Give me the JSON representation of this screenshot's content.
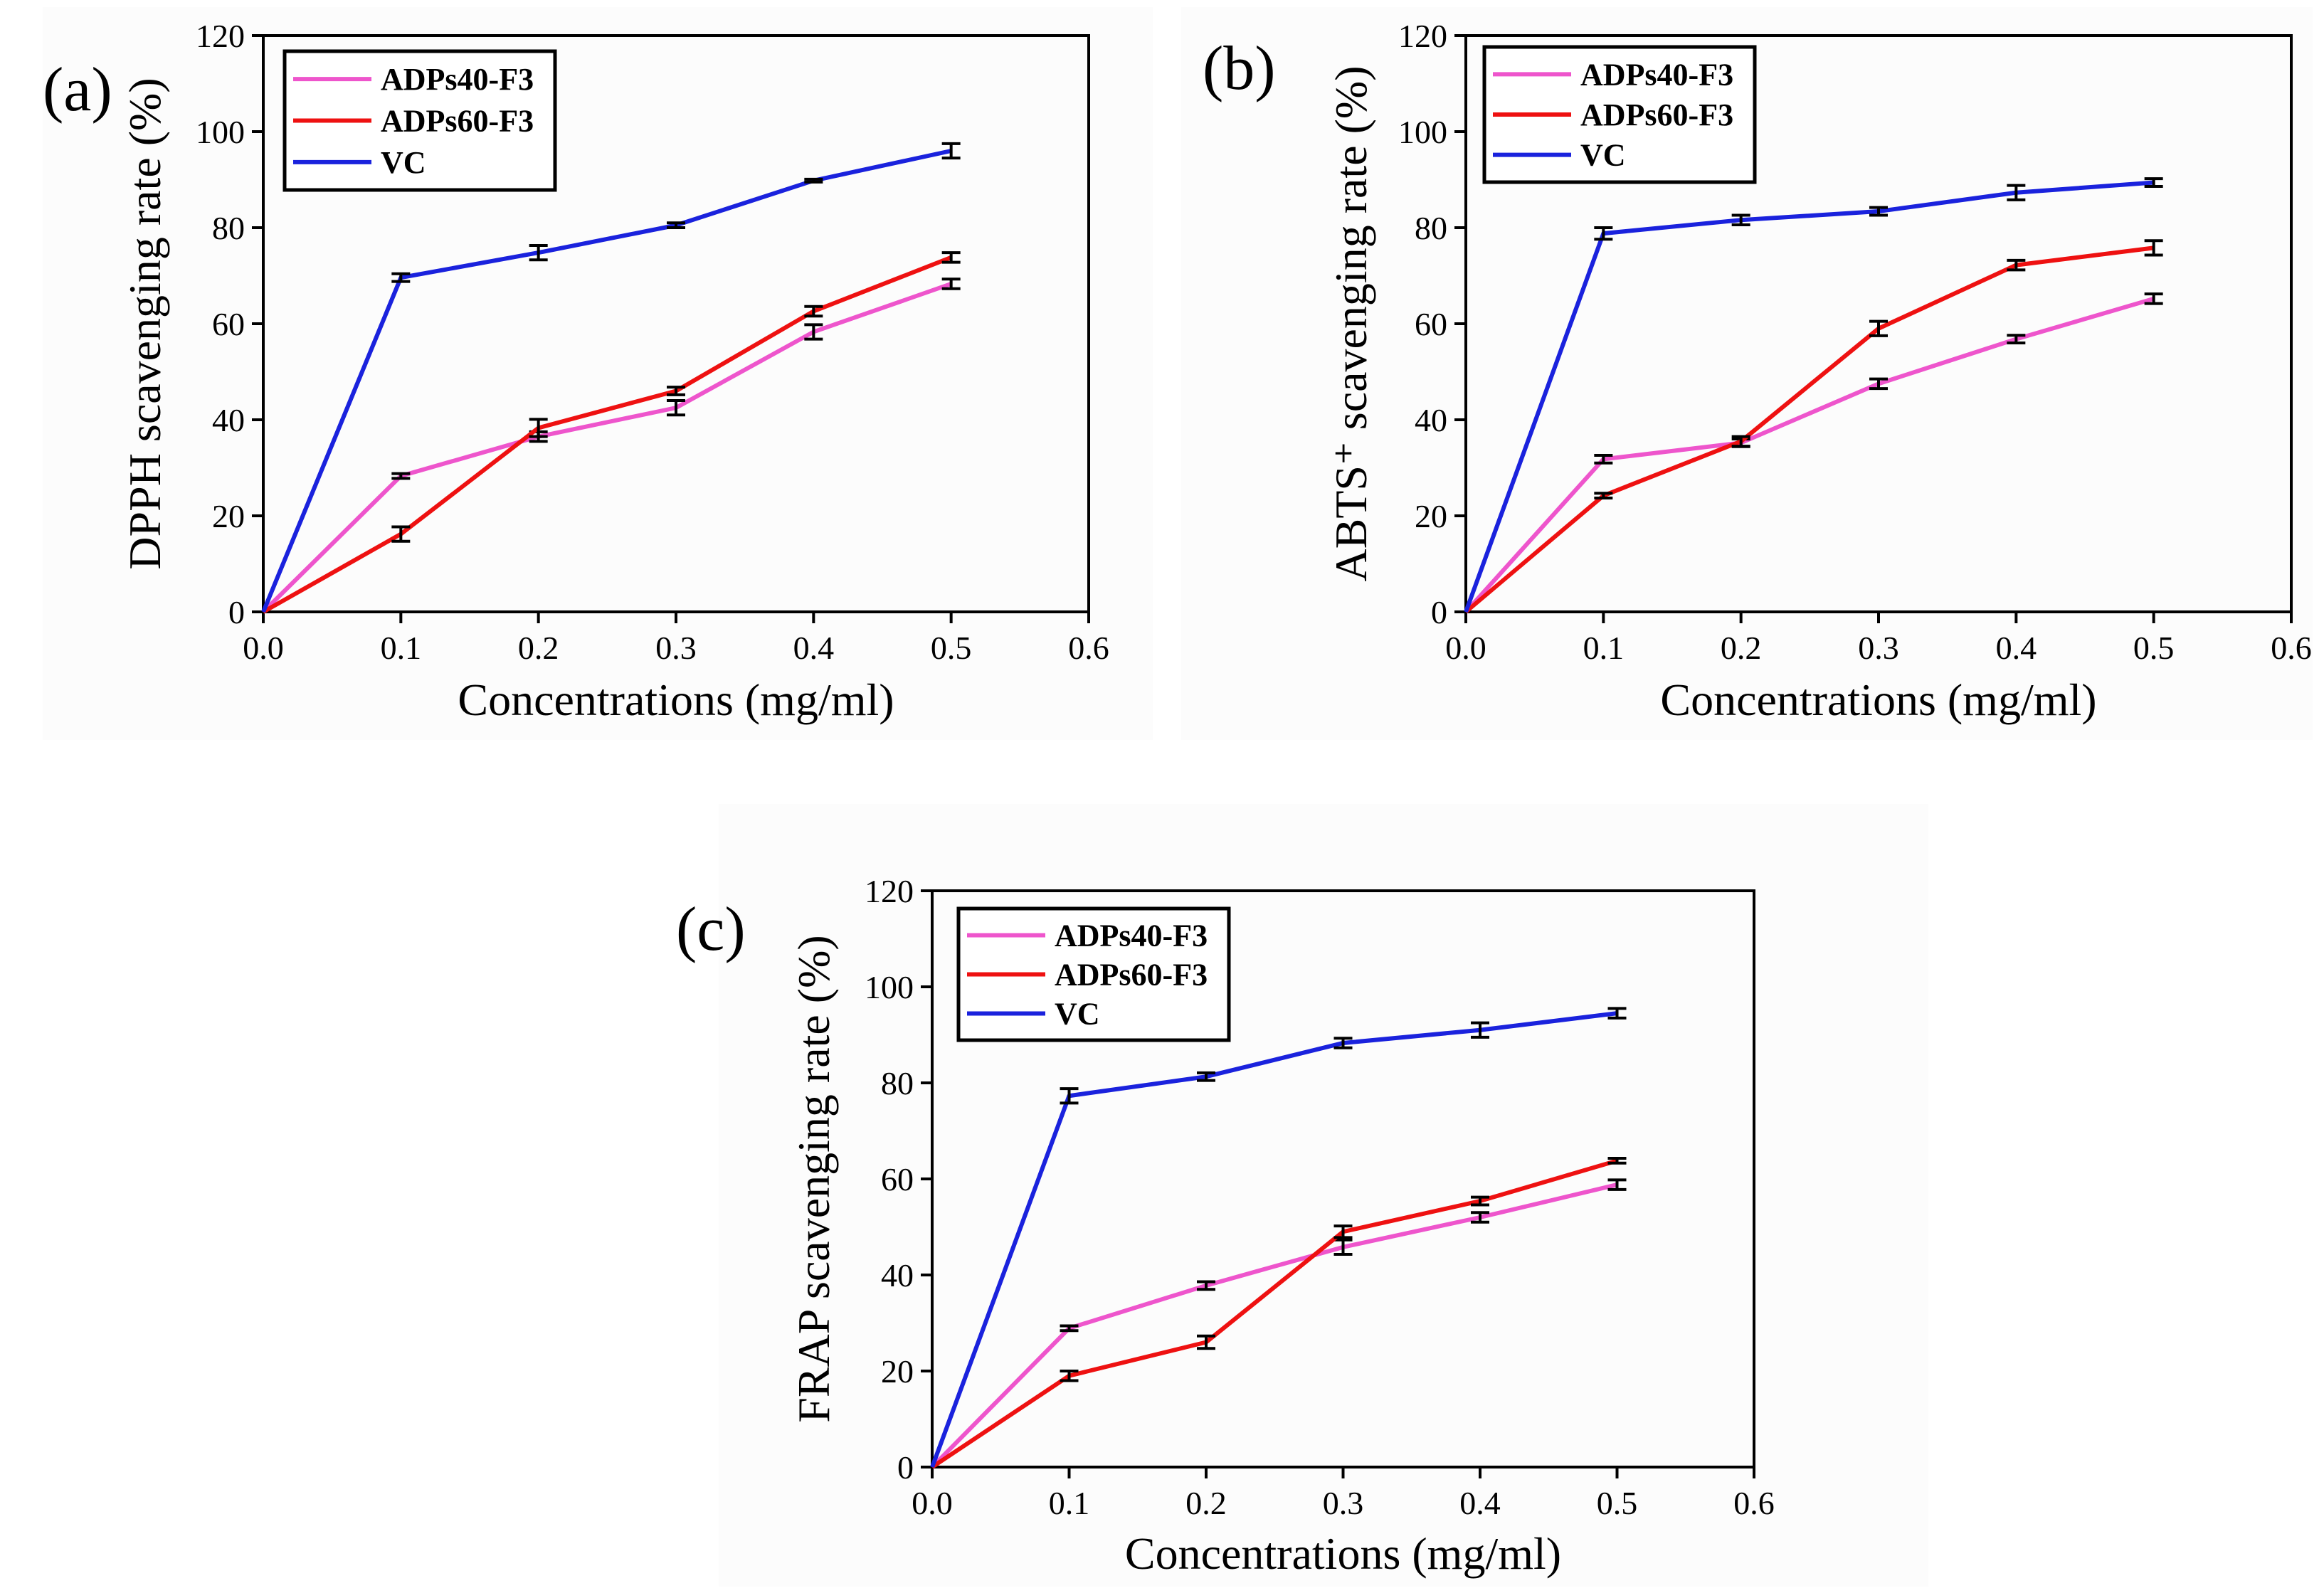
{
  "figure": {
    "colors": {
      "ADPs40-F3": "#ee55cc",
      "ADPs60-F3": "#ee1111",
      "VC": "#1a22dd",
      "error_bar": "#000000",
      "axis": "#000000"
    }
  },
  "chart_data": [
    {
      "id": "a",
      "type": "line",
      "panel_label": "(a)",
      "title": "",
      "xlabel": "Concentrations (mg/ml)",
      "ylabel": "DPPH scavenging rate (%)",
      "xlim": [
        0.0,
        0.6
      ],
      "ylim": [
        0,
        120
      ],
      "xticks": [
        "0.0",
        "0.1",
        "0.2",
        "0.3",
        "0.4",
        "0.5",
        "0.6"
      ],
      "yticks": [
        "0",
        "20",
        "40",
        "60",
        "80",
        "100",
        "120"
      ],
      "grid": false,
      "legend_position": "top-left",
      "x": [
        0.0,
        0.1,
        0.2,
        0.3,
        0.4,
        0.5
      ],
      "series": [
        {
          "name": "ADPs40-F3",
          "values": [
            0,
            28.3,
            36.5,
            42.5,
            58.3,
            68.3
          ],
          "errors": [
            0,
            0.5,
            1.0,
            1.5,
            1.5,
            1.0
          ]
        },
        {
          "name": "ADPs60-F3",
          "values": [
            0,
            16.2,
            38.3,
            46.0,
            62.6,
            73.8
          ],
          "errors": [
            0,
            1.5,
            1.8,
            0.8,
            1.0,
            1.0
          ]
        },
        {
          "name": "VC",
          "values": [
            0,
            69.6,
            74.8,
            80.5,
            89.8,
            96.0
          ],
          "errors": [
            0,
            0.8,
            1.5,
            0.5,
            0.3,
            1.5
          ]
        }
      ]
    },
    {
      "id": "b",
      "type": "line",
      "panel_label": "(b)",
      "title": "",
      "xlabel": "Concentrations (mg/ml)",
      "ylabel": "ABTS⁺ scavenging rate (%)",
      "xlim": [
        0.0,
        0.6
      ],
      "ylim": [
        0,
        120
      ],
      "xticks": [
        "0.0",
        "0.1",
        "0.2",
        "0.3",
        "0.4",
        "0.5",
        "0.6"
      ],
      "yticks": [
        "0",
        "20",
        "40",
        "60",
        "80",
        "100",
        "120"
      ],
      "grid": false,
      "legend_position": "top-left",
      "x": [
        0.0,
        0.1,
        0.2,
        0.3,
        0.4,
        0.5
      ],
      "series": [
        {
          "name": "ADPs40-F3",
          "values": [
            0,
            31.8,
            35.2,
            47.5,
            56.8,
            65.2
          ],
          "errors": [
            0,
            0.8,
            0.8,
            1.0,
            0.8,
            1.0
          ]
        },
        {
          "name": "ADPs60-F3",
          "values": [
            0,
            24.2,
            35.5,
            59.0,
            72.2,
            75.8
          ],
          "errors": [
            0,
            0.5,
            1.0,
            1.5,
            1.0,
            1.5
          ]
        },
        {
          "name": "VC",
          "values": [
            0,
            78.8,
            81.6,
            83.4,
            87.3,
            89.4
          ],
          "errors": [
            0,
            1.2,
            1.0,
            0.8,
            1.5,
            0.8
          ]
        }
      ]
    },
    {
      "id": "c",
      "type": "line",
      "panel_label": "(c)",
      "title": "",
      "xlabel": "Concentrations (mg/ml)",
      "ylabel": "FRAP scavenging rate (%)",
      "xlim": [
        0.0,
        0.6
      ],
      "ylim": [
        0,
        120
      ],
      "xticks": [
        "0.0",
        "0.1",
        "0.2",
        "0.3",
        "0.4",
        "0.5",
        "0.6"
      ],
      "yticks": [
        "0",
        "20",
        "40",
        "60",
        "80",
        "100",
        "120"
      ],
      "grid": false,
      "legend_position": "top-left",
      "x": [
        0.0,
        0.1,
        0.2,
        0.3,
        0.4,
        0.5
      ],
      "series": [
        {
          "name": "ADPs40-F3",
          "values": [
            0,
            28.9,
            37.8,
            45.8,
            52.0,
            58.8
          ],
          "errors": [
            0,
            0.5,
            0.8,
            1.5,
            1.0,
            1.0
          ]
        },
        {
          "name": "ADPs60-F3",
          "values": [
            0,
            19.0,
            26.0,
            49.0,
            55.4,
            63.8
          ],
          "errors": [
            0,
            1.0,
            1.3,
            1.2,
            0.8,
            0.5
          ]
        },
        {
          "name": "VC",
          "values": [
            0,
            77.3,
            81.3,
            88.3,
            91.0,
            94.5
          ],
          "errors": [
            0,
            1.5,
            0.8,
            1.0,
            1.5,
            1.0
          ]
        }
      ]
    }
  ]
}
